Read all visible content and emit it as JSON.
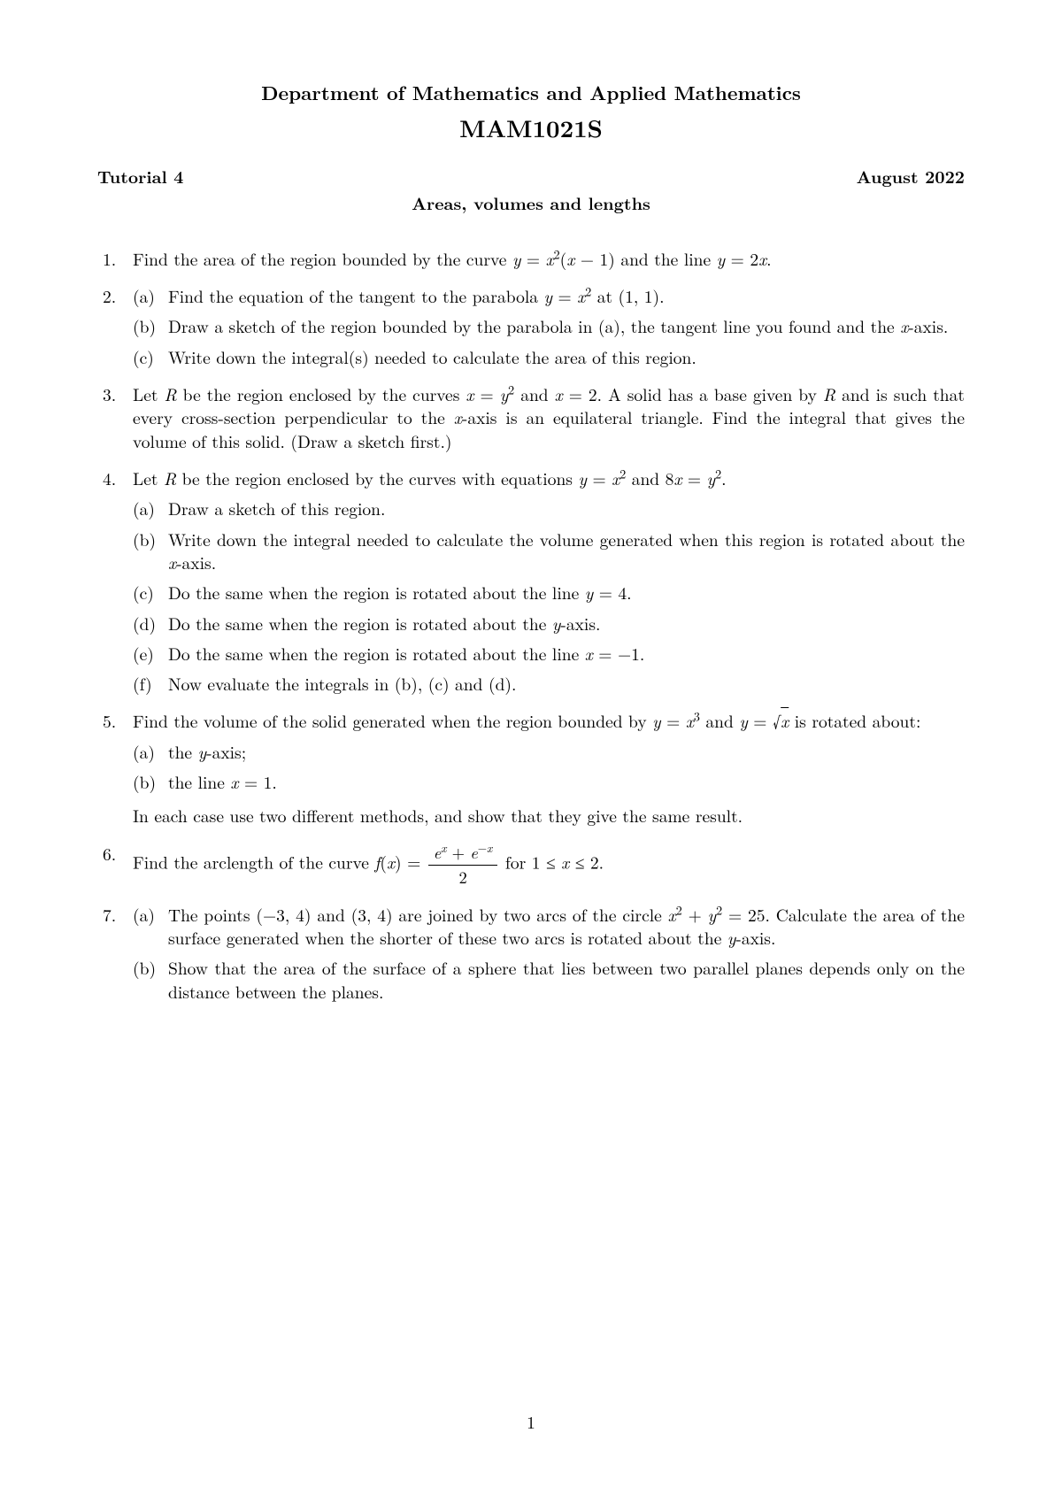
{
  "header": {
    "department": "Department of Mathematics and Applied Mathematics",
    "course_code": "MAM1021S",
    "tutorial_label": "Tutorial 4",
    "date": "August 2022",
    "topic": "Areas, volumes and lengths"
  },
  "page_number": "1",
  "questions": {
    "q1": "Find the area of the region bounded by the curve y = x²(x − 1) and the line y = 2x.",
    "q2": {
      "a": "Find the equation of the tangent to the parabola y = x² at (1, 1).",
      "b": "Draw a sketch of the region bounded by the parabola in (a), the tangent line you found and the x-axis.",
      "c": "Write down the integral(s) needed to calculate the area of this region."
    },
    "q3": "Let R be the region enclosed by the curves x = y² and x = 2. A solid has a base given by R and is such that every cross-section perpendicular to the x-axis is an equilateral triangle. Find the integral that gives the volume of this solid. (Draw a sketch first.)",
    "q4": {
      "intro": "Let R be the region enclosed by the curves with equations y = x² and 8x = y².",
      "a": "Draw a sketch of this region.",
      "b": "Write down the integral needed to calculate the volume generated when this region is rotated about the x-axis.",
      "c": "Do the same when the region is rotated about the line y = 4.",
      "d": "Do the same when the region is rotated about the y-axis.",
      "e": "Do the same when the region is rotated about the line x = −1.",
      "f": "Now evaluate the integrals in (b), (c) and (d)."
    },
    "q5": {
      "intro": "Find the volume of the solid generated when the region bounded by y = x³ and y = √x is rotated about:",
      "a": "the y-axis;",
      "b": "the line x = 1.",
      "outro": "In each case use two different methods, and show that they give the same result."
    },
    "q6": "Find the arclength of the curve f(x) = (eˣ + e⁻ˣ)/2 for 1 ≤ x ≤ 2.",
    "q7": {
      "a": "The points (−3, 4) and (3, 4) are joined by two arcs of the circle x² + y² = 25. Calculate the area of the surface generated when the shorter of these two arcs is rotated about the y-axis.",
      "b": "Show that the area of the surface of a sphere that lies between two parallel planes depends only on the distance between the planes."
    }
  },
  "colors": {
    "text": "#000000",
    "background": "#ffffff"
  },
  "typography": {
    "body_fontsize_pt": 12,
    "header_fontsize_pt": 14,
    "course_fontsize_pt": 17,
    "font_family": "Computer Modern / Latin Modern (serif)"
  }
}
